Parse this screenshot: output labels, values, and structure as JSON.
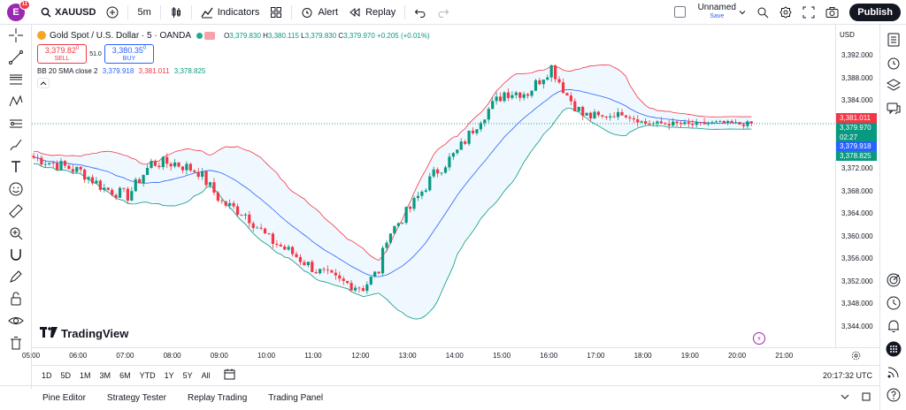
{
  "topbar": {
    "avatar_letter": "E",
    "avatar_badge": "11",
    "symbol": "XAUUSD",
    "interval": "5m",
    "indicators_label": "Indicators",
    "alert_label": "Alert",
    "replay_label": "Replay",
    "layout_name": "Unnamed",
    "layout_status": "Save",
    "publish_label": "Publish"
  },
  "legend": {
    "title": "Gold Spot / U.S. Dollar · 5 · OANDA",
    "o_label": "O",
    "o_val": "3,379.830",
    "h_label": "H",
    "h_val": "3,380.115",
    "l_label": "L",
    "l_val": "3,379.830",
    "c_label": "C",
    "c_val": "3,379.970",
    "change": "+0.205 (+0.01%)",
    "sell_price": "3,379.82",
    "sell_sup": "0",
    "sell_label": "SELL",
    "spread": "51.0",
    "buy_price": "3,380.35",
    "buy_sup": "0",
    "buy_label": "BUY",
    "bb_name": "BB 20 SMA close 2",
    "bb_basis": "3,379.918",
    "bb_upper": "3,381.011",
    "bb_lower": "3,378.825"
  },
  "price_scale": {
    "currency": "USD",
    "ticks": [
      "3,392.000",
      "3,388.000",
      "3,384.000",
      "3,380.000",
      "3,376.000",
      "3,372.000",
      "3,368.000",
      "3,364.000",
      "3,360.000",
      "3,356.000",
      "3,352.000",
      "3,348.000",
      "3,344.000"
    ],
    "label_upper": "3,381.011",
    "label_price": "3,379.970",
    "label_countdown": "02:27",
    "label_basis": "3,379.918",
    "label_lower": "3,378.825"
  },
  "time_axis": [
    "05:00",
    "06:00",
    "07:00",
    "08:00",
    "09:00",
    "10:00",
    "11:00",
    "12:00",
    "13:00",
    "14:00",
    "15:00",
    "16:00",
    "17:00",
    "18:00",
    "19:00",
    "20:00",
    "21:00"
  ],
  "watermark": "TradingView",
  "ranges": [
    "1D",
    "5D",
    "1M",
    "3M",
    "6M",
    "YTD",
    "1Y",
    "5Y",
    "All"
  ],
  "clock": "20:17:32 UTC",
  "bottom_tabs": [
    "Pine Editor",
    "Strategy Tester",
    "Replay Trading",
    "Trading Panel"
  ],
  "colors": {
    "up": "#089981",
    "down": "#f23645",
    "bb_basis": "#2962ff",
    "bb_upper": "#f23645",
    "bb_lower": "#089981",
    "bb_fill": "#2196f3"
  },
  "chart_data": {
    "type": "candlestick",
    "timeframe": "5m",
    "ylim": [
      3344,
      3393
    ],
    "x_start": "05:00",
    "indicator": "Bollinger Bands (20, 2)",
    "approx_close_path": [
      {
        "time": "05:00",
        "close": 3374.0
      },
      {
        "time": "06:00",
        "close": 3371.5
      },
      {
        "time": "06:30",
        "close": 3368.5
      },
      {
        "time": "07:00",
        "close": 3367.2
      },
      {
        "time": "07:30",
        "close": 3373.0
      },
      {
        "time": "08:00",
        "close": 3373.0
      },
      {
        "time": "08:30",
        "close": 3371.5
      },
      {
        "time": "09:00",
        "close": 3366.0
      },
      {
        "time": "09:30",
        "close": 3364.0
      },
      {
        "time": "10:00",
        "close": 3359.5
      },
      {
        "time": "10:30",
        "close": 3357.0
      },
      {
        "time": "11:00",
        "close": 3354.0
      },
      {
        "time": "11:30",
        "close": 3352.0
      },
      {
        "time": "12:00",
        "close": 3351.0
      },
      {
        "time": "12:20",
        "close": 3354.0
      },
      {
        "time": "12:30",
        "close": 3360.0
      },
      {
        "time": "13:00",
        "close": 3365.0
      },
      {
        "time": "13:30",
        "close": 3371.0
      },
      {
        "time": "14:00",
        "close": 3375.0
      },
      {
        "time": "14:30",
        "close": 3381.0
      },
      {
        "time": "15:00",
        "close": 3385.5
      },
      {
        "time": "15:30",
        "close": 3385.5
      },
      {
        "time": "16:00",
        "close": 3390.0
      },
      {
        "time": "16:20",
        "close": 3385.0
      },
      {
        "time": "16:40",
        "close": 3381.5
      },
      {
        "time": "17:00",
        "close": 3381.0
      },
      {
        "time": "17:30",
        "close": 3381.8
      },
      {
        "time": "18:00",
        "close": 3380.0
      },
      {
        "time": "18:30",
        "close": 3380.0
      },
      {
        "time": "19:00",
        "close": 3379.8
      },
      {
        "time": "19:30",
        "close": 3380.1
      },
      {
        "time": "20:00",
        "close": 3379.9
      },
      {
        "time": "20:15",
        "close": 3379.97
      }
    ]
  }
}
